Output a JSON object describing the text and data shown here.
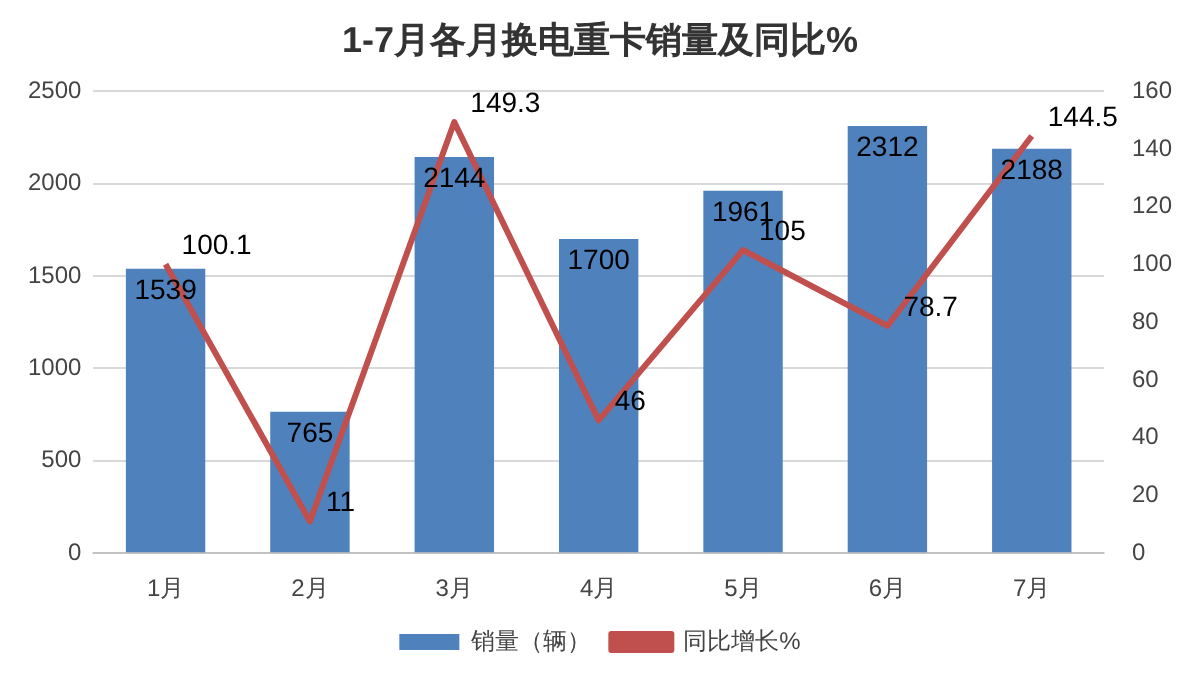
{
  "chart_data": {
    "type": "bar",
    "title": "1-7月各月换电重卡销量及同比%",
    "categories": [
      "1月",
      "2月",
      "3月",
      "4月",
      "5月",
      "6月",
      "7月"
    ],
    "series": [
      {
        "name": "销量（辆）",
        "color": "#4f81bd",
        "values": [
          1539,
          765,
          2144,
          1700,
          1961,
          2312,
          2188
        ]
      },
      {
        "name": "同比增长%",
        "type": "line",
        "axis": "y2",
        "color": "#c0504d",
        "values": [
          100.1,
          11,
          149.3,
          46,
          105,
          78.7,
          144.5
        ]
      }
    ],
    "ylim": [
      0,
      2500
    ],
    "yticks": [
      0,
      500,
      1000,
      1500,
      2000,
      2500
    ],
    "y2lim": [
      0,
      160
    ],
    "y2ticks": [
      0,
      20,
      40,
      60,
      80,
      100,
      120,
      140,
      160
    ],
    "grid": "y",
    "legend": "bottom",
    "data_labels": true,
    "marker": "none"
  }
}
